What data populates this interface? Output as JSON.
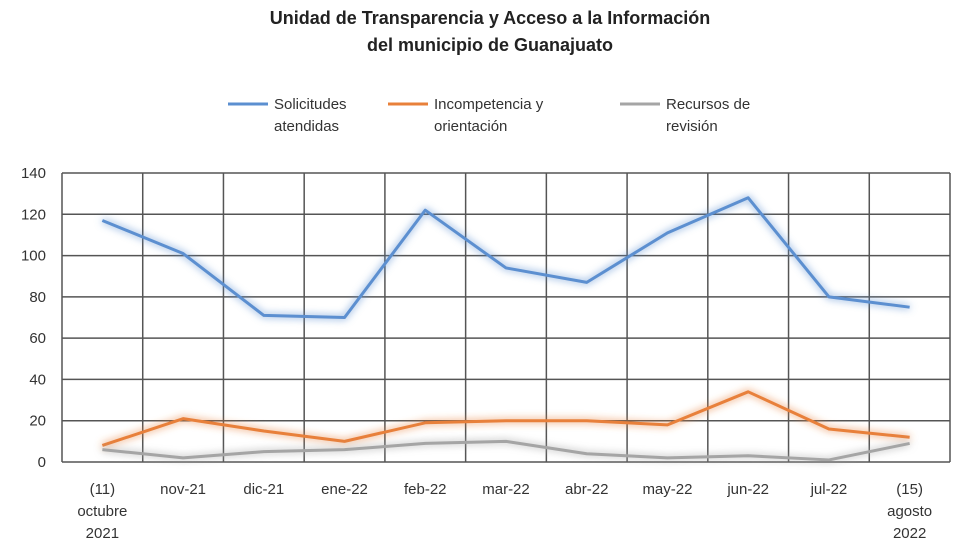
{
  "chart_data": {
    "type": "line",
    "title": "Unidad de Transparencia y Acceso a la Información\ndel municipio de Guanajuato",
    "categories": [
      "(11)\noctubre\n2021",
      "nov-21",
      "dic-21",
      "ene-22",
      "feb-22",
      "mar-22",
      "abr-22",
      "may-22",
      "jun-22",
      "jul-22",
      "(15)\nagosto\n2022"
    ],
    "series": [
      {
        "name": "Solicitudes\natendidas",
        "color": "#5b8fd0",
        "values": [
          117,
          101,
          71,
          70,
          122,
          94,
          87,
          111,
          128,
          80,
          75
        ]
      },
      {
        "name": "Incompetencia y\norientación",
        "color": "#e8803a",
        "values": [
          8,
          21,
          15,
          10,
          19,
          20,
          20,
          18,
          34,
          16,
          12
        ]
      },
      {
        "name": "Recursos de\nrevisión",
        "color": "#a5a5a5",
        "values": [
          6,
          2,
          5,
          6,
          9,
          10,
          4,
          2,
          3,
          1,
          9
        ]
      }
    ],
    "ylim": [
      0,
      140
    ],
    "yticks": [
      0,
      20,
      40,
      60,
      80,
      100,
      120,
      140
    ],
    "grid": true,
    "legend": "top"
  }
}
